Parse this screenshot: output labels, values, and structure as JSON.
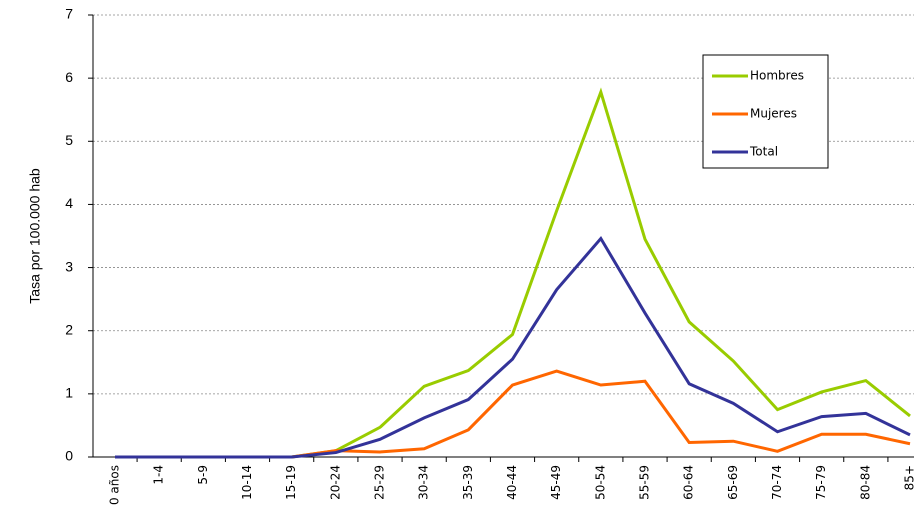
{
  "chart_data": {
    "type": "line",
    "ylabel": "Tasa por 100.000 hab",
    "categories": [
      "0 años",
      "1-4",
      "5-9",
      "10-14",
      "15-19",
      "20-24",
      "25-29",
      "30-34",
      "35-39",
      "40-44",
      "45-49",
      "50-54",
      "55-59",
      "60-64",
      "65-69",
      "70-74",
      "75-79",
      "80-84",
      "85+"
    ],
    "series": [
      {
        "name": "Hombres",
        "color": "#99cc00",
        "values": [
          0,
          0,
          0,
          0,
          0,
          0.1,
          0.47,
          1.12,
          1.37,
          1.94,
          3.9,
          5.78,
          3.45,
          2.14,
          1.52,
          0.75,
          1.03,
          1.21,
          0.65
        ]
      },
      {
        "name": "Mujeres",
        "color": "#ff6600",
        "values": [
          0,
          0,
          0,
          0,
          0,
          0.1,
          0.08,
          0.13,
          0.43,
          1.14,
          1.36,
          1.14,
          1.2,
          0.23,
          0.25,
          0.09,
          0.36,
          0.36,
          0.21
        ]
      },
      {
        "name": "Total",
        "color": "#333399",
        "values": [
          0,
          0,
          0,
          0,
          0,
          0.07,
          0.28,
          0.62,
          0.91,
          1.55,
          2.65,
          3.46,
          2.28,
          1.16,
          0.85,
          0.4,
          0.64,
          0.69,
          0.35
        ]
      }
    ],
    "ylim": [
      0,
      7
    ],
    "yticks": [
      0,
      1,
      2,
      3,
      4,
      5,
      6,
      7
    ],
    "grid": true
  }
}
